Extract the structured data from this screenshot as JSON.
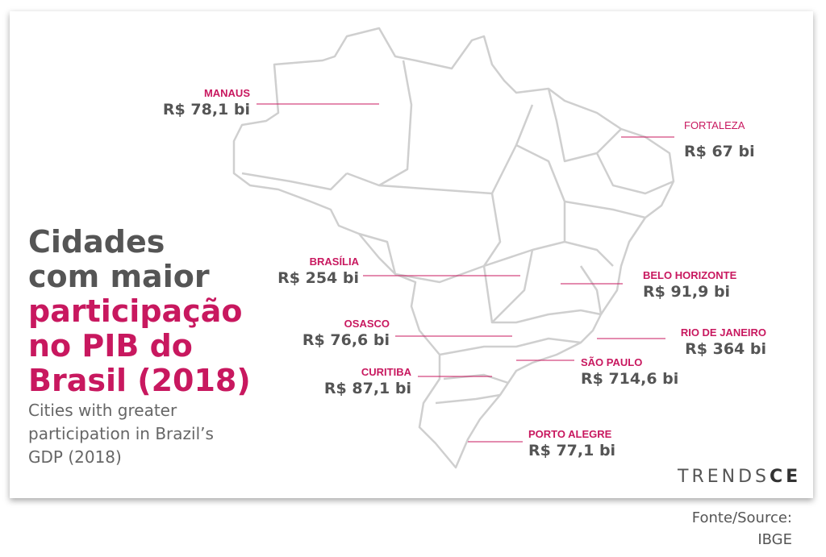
{
  "title": {
    "lines_dark": [
      "Cidades",
      "com maior"
    ],
    "lines_pink": [
      "participação",
      "no PIB do",
      "Brasil (2018)"
    ]
  },
  "subtitle": [
    "Cities with greater",
    "participation in Brazil’s",
    "GDP (2018)"
  ],
  "cities": [
    {
      "name": "MANAUS",
      "value": "R$ 78,1 bi"
    },
    {
      "name": "FORTALEZA",
      "value": "R$ 67 bi"
    },
    {
      "name": "BRASÍLIA",
      "value": "R$ 254 bi"
    },
    {
      "name": "BELO HORIZONTE",
      "value": "R$ 91,9 bi"
    },
    {
      "name": "OSASCO",
      "value": "R$ 76,6 bi"
    },
    {
      "name": "RIO DE JANEIRO",
      "value": "R$ 364 bi"
    },
    {
      "name": "SÃO PAULO",
      "value": "R$ 714,6 bi"
    },
    {
      "name": "CURITIBA",
      "value": "R$ 87,1 bi"
    },
    {
      "name": "PORTO ALEGRE",
      "value": "R$ 77,1 bi"
    }
  ],
  "brand": {
    "part1": "TRENDS",
    "part2": "CE"
  },
  "source": [
    "Fonte/Source:",
    "IBGE"
  ]
}
